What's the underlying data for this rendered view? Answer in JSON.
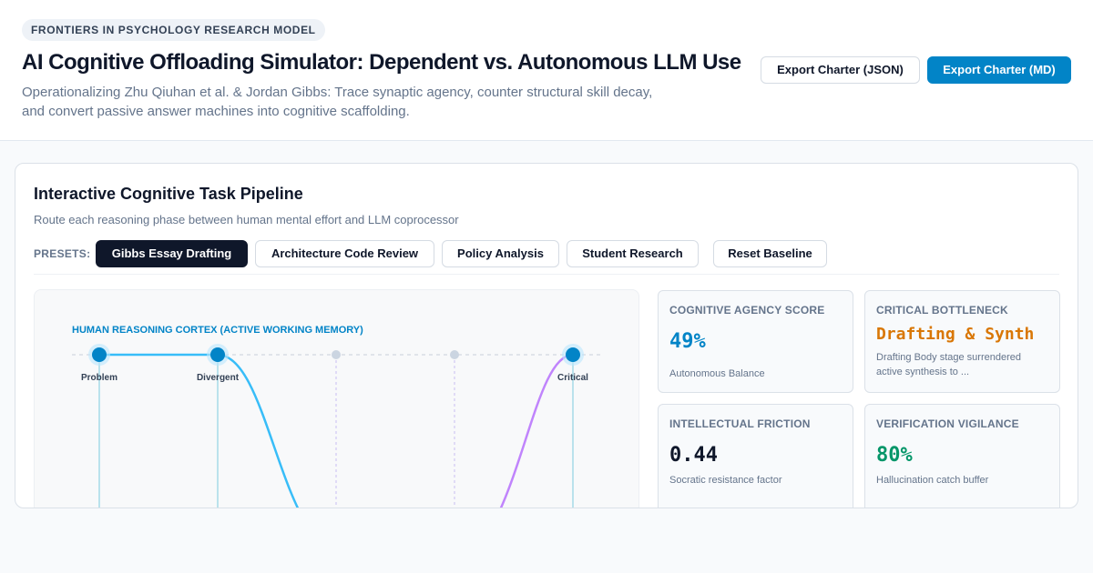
{
  "header": {
    "badge": "FRONTIERS IN PSYCHOLOGY RESEARCH MODEL",
    "title": "AI Cognitive Offloading Simulator: Dependent vs. Autonomous LLM Use",
    "subtitle": "Operationalizing Zhu Qiuhan et al. & Jordan Gibbs: Trace synaptic agency, counter structural skill decay, and convert passive answer machines into cognitive scaffolding.",
    "export_json_label": "Export Charter (JSON)",
    "export_md_label": "Export Charter (MD)"
  },
  "pipeline": {
    "title": "Interactive Cognitive Task Pipeline",
    "subtitle": "Route each reasoning phase between human mental effort and LLM coprocessor",
    "presets_label": "PRESETS:",
    "presets": [
      {
        "label": "Gibbs Essay Drafting",
        "active": true
      },
      {
        "label": "Architecture Code Review",
        "active": false
      },
      {
        "label": "Policy Analysis",
        "active": false
      },
      {
        "label": "Student Research",
        "active": false
      }
    ],
    "reset_label": "Reset Baseline"
  },
  "visualization": {
    "lane_label": "HUMAN REASONING CORTEX (ACTIVE WORKING MEMORY)",
    "stages": [
      {
        "label": "Problem",
        "routing": "human"
      },
      {
        "label": "Divergent",
        "routing": "human"
      },
      {
        "label": "",
        "routing": "llm"
      },
      {
        "label": "",
        "routing": "llm"
      },
      {
        "label": "Critical",
        "routing": "human"
      }
    ],
    "colors": {
      "human": "#0284c7",
      "llm": "#c084fc",
      "lane": "#38bdf8"
    }
  },
  "metrics": [
    {
      "id": "agency",
      "label": "COGNITIVE AGENCY SCORE",
      "value": "49%",
      "color": "#0284c7",
      "desc": "Autonomous Balance"
    },
    {
      "id": "bottleneck",
      "label": "CRITICAL BOTTLENECK",
      "value": "Drafting & Synth",
      "color": "#d97706",
      "desc": "Drafting Body stage surrendered active synthesis to ..."
    },
    {
      "id": "friction",
      "label": "INTELLECTUAL FRICTION",
      "value": "0.44",
      "color": "#0f172a",
      "desc": "Socratic resistance factor"
    },
    {
      "id": "vigilance",
      "label": "VERIFICATION VIGILANCE",
      "value": "80%",
      "color": "#059669",
      "desc": "Hallucination catch buffer"
    }
  ]
}
